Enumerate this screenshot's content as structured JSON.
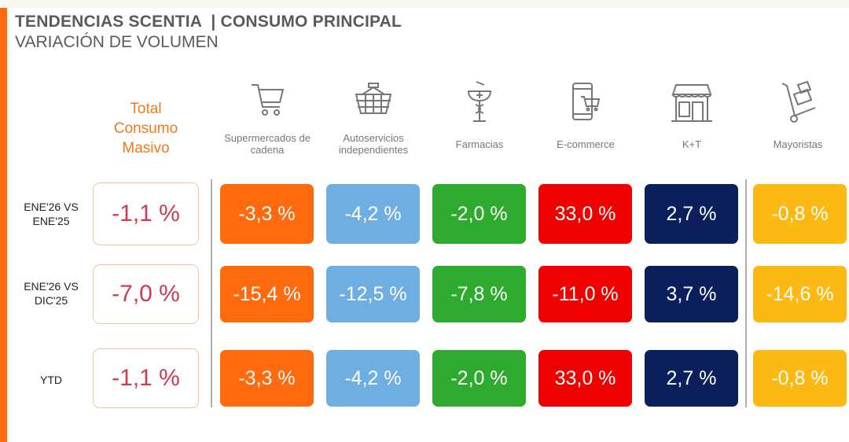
{
  "header": {
    "title": "TENDENCIAS SCENTIA  | CONSUMO PRINCIPAL",
    "subtitle": "VARIACIÓN DE VOLUMEN"
  },
  "total_header": [
    "Total",
    "Consumo",
    "Masivo"
  ],
  "channels": [
    {
      "label": "Supermercados de cadena",
      "icon": "shopping-cart-icon",
      "color": "#ff6a0e"
    },
    {
      "label": "Autoservicios independientes",
      "icon": "basket-icon",
      "color": "#6eaee0"
    },
    {
      "label": "Farmacias",
      "icon": "pharmacy-icon",
      "color": "#2eab2e"
    },
    {
      "label": "E-commerce",
      "icon": "mobile-cart-icon",
      "color": "#f00000"
    },
    {
      "label": "K+T",
      "icon": "storefront-icon",
      "color": "#0a1f5c"
    },
    {
      "label": "Mayoristas",
      "icon": "hand-truck-icon",
      "color": "#fdb913"
    }
  ],
  "rows": [
    {
      "label": "ENE'26 VS ENE'25",
      "total": "-1,1 %",
      "values": [
        "-3,3 %",
        "-4,2 %",
        "-2,0 %",
        "33,0 %",
        "2,7 %",
        "-0,8 %"
      ]
    },
    {
      "label": "ENE'26 VS DIC'25",
      "total": "-7,0 %",
      "values": [
        "-15,4 %",
        "-12,5 %",
        "-7,8 %",
        "-11,0 %",
        "3,7 %",
        "-14,6 %"
      ]
    },
    {
      "label": "YTD",
      "total": "-1,1 %",
      "values": [
        "-3,3 %",
        "-4,2 %",
        "-2,0 %",
        "33,0 %",
        "2,7 %",
        "-0,8 %"
      ]
    }
  ]
}
